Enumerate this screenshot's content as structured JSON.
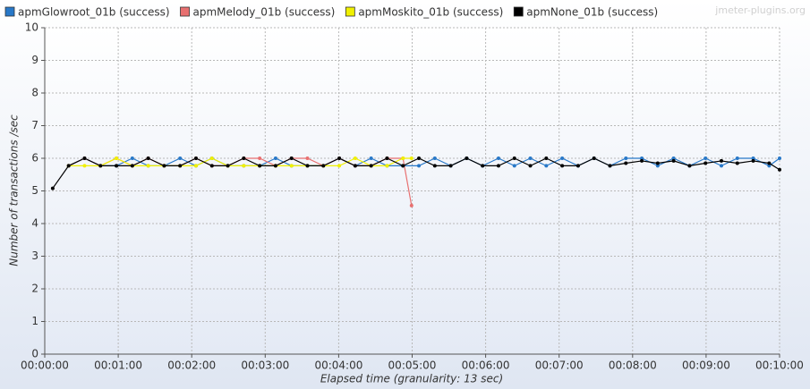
{
  "chart_data": {
    "type": "line",
    "watermark": "jmeter-plugins.org",
    "x_label": "Elapsed time (granularity: 13 sec)",
    "y_label": "Number of transactions /sec",
    "xlim": [
      0,
      600
    ],
    "xticks": [
      {
        "value": 0,
        "label": "00:00:00"
      },
      {
        "value": 60,
        "label": "00:01:00"
      },
      {
        "value": 120,
        "label": "00:02:00"
      },
      {
        "value": 180,
        "label": "00:03:00"
      },
      {
        "value": 240,
        "label": "00:04:00"
      },
      {
        "value": 300,
        "label": "00:05:00"
      },
      {
        "value": 360,
        "label": "00:06:00"
      },
      {
        "value": 420,
        "label": "00:07:00"
      },
      {
        "value": 480,
        "label": "00:08:00"
      },
      {
        "value": 540,
        "label": "00:09:00"
      },
      {
        "value": 600,
        "label": "00:10:00"
      }
    ],
    "ylim": [
      0,
      10
    ],
    "yticks": [
      0,
      1,
      2,
      3,
      4,
      5,
      6,
      7,
      8,
      9,
      10
    ],
    "grid": true,
    "series": [
      {
        "name": "apmGlowroot_01b (success)",
        "color": "#2878c8",
        "x": [
          19.5,
          32.5,
          45.5,
          58.5,
          71.5,
          84.5,
          97.5,
          110.5,
          123.5,
          136.5,
          149.5,
          162.5,
          175.5,
          188.5,
          201.5,
          214.5,
          227.5,
          240.5,
          253.5,
          266.5,
          279.5,
          292.5,
          305.5,
          318.5,
          331.5,
          344.5,
          357.5,
          370.5,
          383.5,
          396.5,
          409.5,
          422.5,
          435.5,
          448.5,
          461.5,
          474.5,
          487.5,
          500.5,
          513.5,
          526.5,
          539.5,
          552.5,
          565.5,
          578.5,
          591.5,
          600
        ],
        "values": [
          5.77,
          6.0,
          5.77,
          5.77,
          6.0,
          5.77,
          5.77,
          6.0,
          5.77,
          6.0,
          5.77,
          5.77,
          5.77,
          6.0,
          5.77,
          5.77,
          5.77,
          6.0,
          5.77,
          6.0,
          5.77,
          5.77,
          5.77,
          6.0,
          5.77,
          6.0,
          5.77,
          6.0,
          5.77,
          6.0,
          5.77,
          6.0,
          5.77,
          6.0,
          5.77,
          6.0,
          6.0,
          5.77,
          6.0,
          5.77,
          6.0,
          5.77,
          6.0,
          6.0,
          5.77,
          6.0
        ]
      },
      {
        "name": "apmMelody_01b (success)",
        "color": "#e87070",
        "x": [
          19.5,
          32.5,
          45.5,
          58.5,
          71.5,
          84.5,
          97.5,
          110.5,
          123.5,
          136.5,
          149.5,
          162.5,
          175.5,
          188.5,
          201.5,
          214.5,
          227.5,
          240.5,
          253.5,
          266.5,
          279.5,
          292.5,
          299.5
        ],
        "values": [
          5.77,
          6.0,
          5.77,
          6.0,
          5.77,
          6.0,
          5.77,
          5.77,
          6.0,
          5.77,
          5.77,
          6.0,
          6.0,
          5.77,
          6.0,
          6.0,
          5.77,
          6.0,
          5.77,
          5.77,
          6.0,
          6.0,
          4.55
        ]
      },
      {
        "name": "apmMoskito_01b (success)",
        "color": "#f0f000",
        "x": [
          19.5,
          32.5,
          45.5,
          58.5,
          71.5,
          84.5,
          97.5,
          110.5,
          123.5,
          136.5,
          149.5,
          162.5,
          175.5,
          188.5,
          201.5,
          214.5,
          227.5,
          240.5,
          253.5,
          266.5,
          279.5,
          292.5,
          299.5
        ],
        "values": [
          5.77,
          5.77,
          5.77,
          6.0,
          5.77,
          5.77,
          5.77,
          5.77,
          5.77,
          6.0,
          5.77,
          5.77,
          5.77,
          5.77,
          5.77,
          5.77,
          5.77,
          5.77,
          6.0,
          5.77,
          5.77,
          6.0,
          6.0
        ]
      },
      {
        "name": "apmNone_01b (success)",
        "color": "#000000",
        "x": [
          6.5,
          19.5,
          32.5,
          45.5,
          58.5,
          71.5,
          84.5,
          97.5,
          110.5,
          123.5,
          136.5,
          149.5,
          162.5,
          175.5,
          188.5,
          201.5,
          214.5,
          227.5,
          240.5,
          253.5,
          266.5,
          279.5,
          292.5,
          305.5,
          318.5,
          331.5,
          344.5,
          357.5,
          370.5,
          383.5,
          396.5,
          409.5,
          422.5,
          435.5,
          448.5,
          461.5,
          474.5,
          487.5,
          500.5,
          513.5,
          526.5,
          539.5,
          552.5,
          565.5,
          578.5,
          591.5,
          600
        ],
        "values": [
          5.08,
          5.77,
          6.0,
          5.77,
          5.77,
          5.77,
          6.0,
          5.77,
          5.77,
          6.0,
          5.77,
          5.77,
          6.0,
          5.77,
          5.77,
          6.0,
          5.77,
          5.77,
          6.0,
          5.77,
          5.77,
          6.0,
          5.77,
          6.0,
          5.77,
          5.77,
          6.0,
          5.77,
          5.77,
          6.0,
          5.77,
          6.0,
          5.77,
          5.77,
          6.0,
          5.77,
          5.85,
          5.92,
          5.85,
          5.92,
          5.77,
          5.85,
          5.92,
          5.85,
          5.92,
          5.85,
          5.65
        ]
      }
    ]
  }
}
